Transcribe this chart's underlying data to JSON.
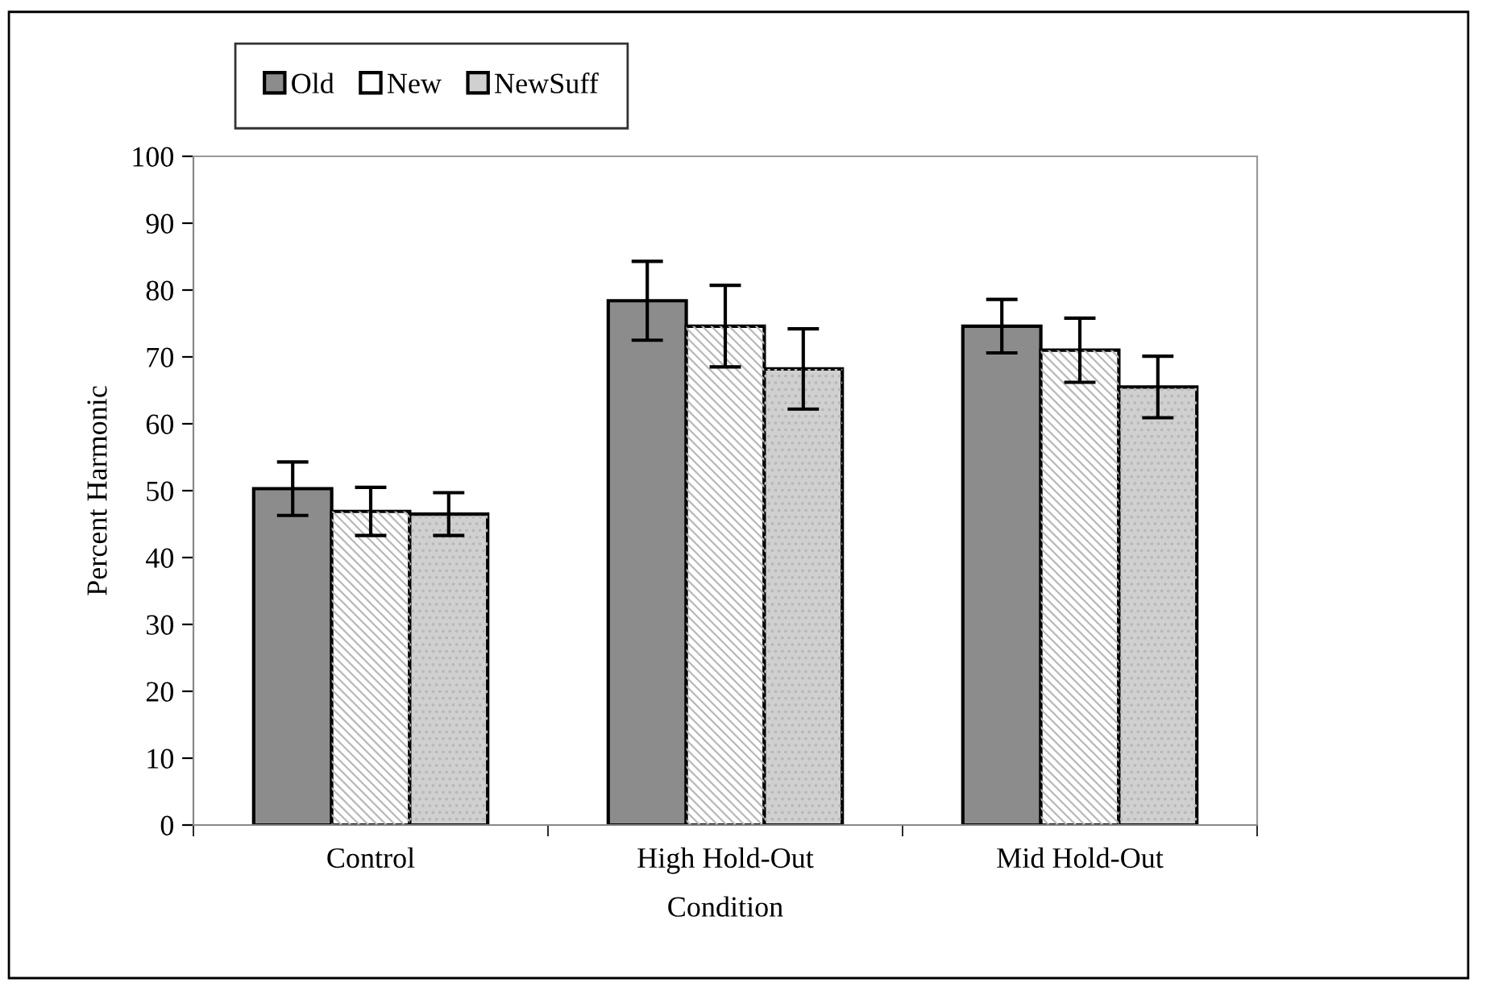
{
  "chart_data": {
    "type": "bar",
    "xlabel": "Condition",
    "ylabel": "Percent Harmonic",
    "categories": [
      "Control",
      "High Hold-Out",
      "Mid Hold-Out"
    ],
    "series": [
      {
        "name": "Old",
        "color": "#8c8c8c",
        "values": [
          50.3,
          78.4,
          74.6
        ],
        "errors": [
          4.0,
          5.9,
          4.0
        ]
      },
      {
        "name": "New",
        "color": "#ffffff",
        "values": [
          46.9,
          74.6,
          71.0
        ],
        "errors": [
          3.6,
          6.1,
          4.8
        ]
      },
      {
        "name": "NewSuff",
        "color": "#d0d0d0",
        "values": [
          46.5,
          68.2,
          65.5
        ],
        "errors": [
          3.2,
          6.0,
          4.6
        ]
      }
    ],
    "ylim": [
      0,
      100
    ],
    "yticks": [
      0,
      10,
      20,
      30,
      40,
      50,
      60,
      70,
      80,
      90,
      100
    ],
    "grid": false,
    "legend": "top left"
  }
}
